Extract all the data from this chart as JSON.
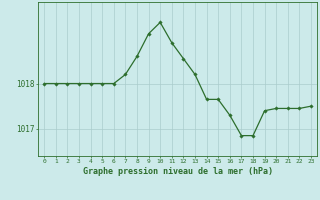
{
  "x": [
    0,
    1,
    2,
    3,
    4,
    5,
    6,
    7,
    8,
    9,
    10,
    11,
    12,
    13,
    14,
    15,
    16,
    17,
    18,
    19,
    20,
    21,
    22,
    23
  ],
  "y": [
    1018.0,
    1018.0,
    1018.0,
    1018.0,
    1018.0,
    1018.0,
    1018.0,
    1018.2,
    1018.6,
    1019.1,
    1019.35,
    1018.9,
    1018.55,
    1018.2,
    1017.65,
    1017.65,
    1017.3,
    1016.85,
    1016.85,
    1017.4,
    1017.45,
    1017.45,
    1017.45,
    1017.5
  ],
  "line_color": "#2d6e2d",
  "marker": "D",
  "marker_size": 1.8,
  "linewidth": 0.9,
  "bg_color": "#cceaea",
  "grid_color": "#aacccc",
  "axis_label_color": "#2d6e2d",
  "tick_color": "#2d6e2d",
  "xlabel": "Graphe pression niveau de la mer (hPa)",
  "xlabel_fontsize": 6.0,
  "ytick_labels": [
    "1017",
    "1018"
  ],
  "ytick_values": [
    1017.0,
    1018.0
  ],
  "ylim": [
    1016.4,
    1019.8
  ],
  "xlim": [
    -0.5,
    23.5
  ],
  "xtick_fontsize": 4.5,
  "ytick_fontsize": 5.5
}
